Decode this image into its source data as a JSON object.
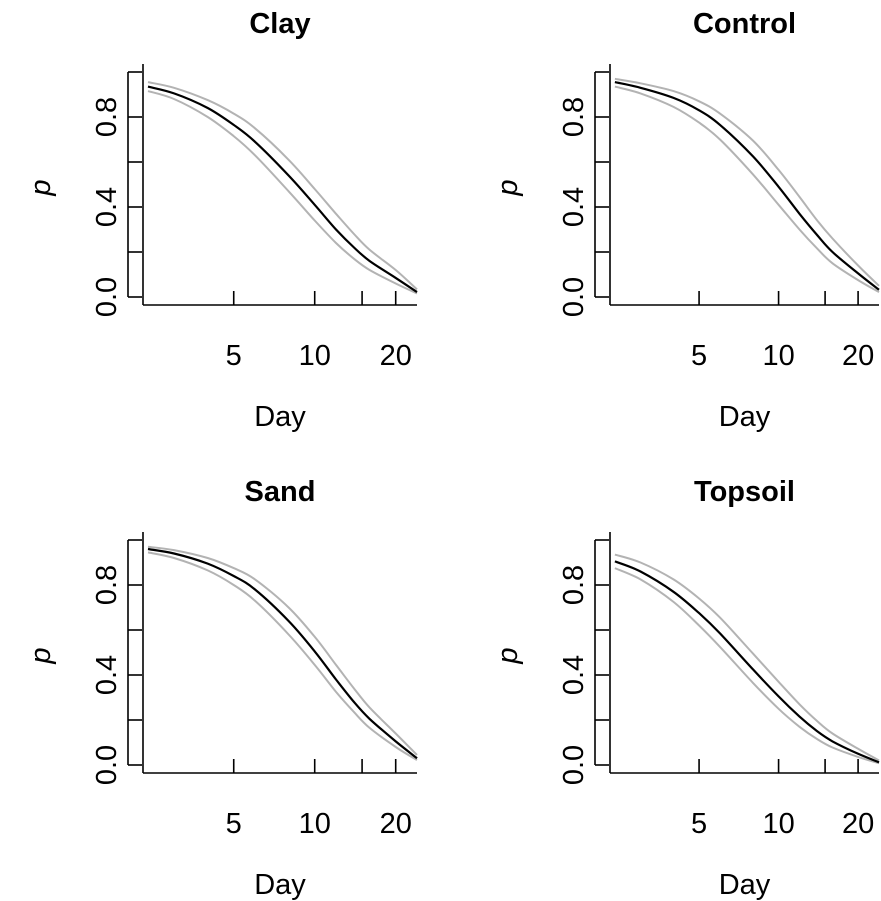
{
  "chart_data": [
    {
      "type": "line",
      "title": "Clay",
      "xlabel": "Day",
      "ylabel": "p",
      "x_scale": "log",
      "xlim": [
        2.3,
        24
      ],
      "ylim": [
        0,
        1
      ],
      "x_ticks": [
        5,
        10,
        20
      ],
      "x_tick_labels": [
        "5",
        "10",
        "20"
      ],
      "y_ticks": [
        0,
        0.2,
        0.4,
        0.6,
        0.8,
        1.0
      ],
      "y_tick_labels": [
        "0.0",
        "",
        "0.4",
        "",
        "0.8",
        ""
      ],
      "series": [
        {
          "role": "lower",
          "color": "#b3b3b3",
          "x": [
            2.4,
            3,
            4,
            5,
            6,
            8,
            10,
            12,
            14,
            16,
            20,
            24
          ],
          "y": [
            0.915,
            0.88,
            0.8,
            0.715,
            0.63,
            0.47,
            0.34,
            0.24,
            0.17,
            0.12,
            0.06,
            0.016
          ]
        },
        {
          "role": "estimate",
          "color": "#000000",
          "x": [
            2.4,
            3,
            4,
            5,
            6,
            8,
            10,
            12,
            14,
            16,
            20,
            24
          ],
          "y": [
            0.935,
            0.905,
            0.84,
            0.765,
            0.69,
            0.54,
            0.41,
            0.3,
            0.22,
            0.16,
            0.085,
            0.022
          ]
        },
        {
          "role": "upper",
          "color": "#b3b3b3",
          "x": [
            2.4,
            3,
            4,
            5,
            6,
            8,
            10,
            12,
            14,
            16,
            20,
            24
          ],
          "y": [
            0.955,
            0.93,
            0.875,
            0.815,
            0.75,
            0.61,
            0.48,
            0.37,
            0.28,
            0.21,
            0.12,
            0.034
          ]
        }
      ]
    },
    {
      "type": "line",
      "title": "Control",
      "xlabel": "Day",
      "ylabel": "p",
      "x_scale": "log",
      "xlim": [
        2.3,
        24
      ],
      "ylim": [
        0,
        1
      ],
      "x_ticks": [
        5,
        10,
        20
      ],
      "x_tick_labels": [
        "5",
        "10",
        "20"
      ],
      "y_ticks": [
        0,
        0.2,
        0.4,
        0.6,
        0.8,
        1.0
      ],
      "y_tick_labels": [
        "0.0",
        "",
        "0.4",
        "",
        "0.8",
        ""
      ],
      "series": [
        {
          "role": "lower",
          "color": "#b3b3b3",
          "x": [
            2.4,
            3,
            4,
            5,
            6,
            8,
            10,
            12,
            14,
            16,
            20,
            24
          ],
          "y": [
            0.935,
            0.905,
            0.845,
            0.775,
            0.7,
            0.545,
            0.41,
            0.3,
            0.215,
            0.15,
            0.075,
            0.022
          ]
        },
        {
          "role": "estimate",
          "color": "#000000",
          "x": [
            2.4,
            3,
            4,
            5,
            6,
            8,
            10,
            12,
            14,
            16,
            20,
            24
          ],
          "y": [
            0.955,
            0.93,
            0.885,
            0.83,
            0.765,
            0.625,
            0.49,
            0.37,
            0.275,
            0.2,
            0.105,
            0.032
          ]
        },
        {
          "role": "upper",
          "color": "#b3b3b3",
          "x": [
            2.4,
            3,
            4,
            5,
            6,
            8,
            10,
            12,
            14,
            16,
            20,
            24
          ],
          "y": [
            0.97,
            0.95,
            0.915,
            0.87,
            0.815,
            0.695,
            0.565,
            0.445,
            0.34,
            0.26,
            0.14,
            0.05
          ]
        }
      ]
    },
    {
      "type": "line",
      "title": "Sand",
      "xlabel": "Day",
      "ylabel": "p",
      "x_scale": "log",
      "xlim": [
        2.3,
        24
      ],
      "ylim": [
        0,
        1
      ],
      "x_ticks": [
        5,
        10,
        20
      ],
      "x_tick_labels": [
        "5",
        "10",
        "20"
      ],
      "y_ticks": [
        0,
        0.2,
        0.4,
        0.6,
        0.8,
        1.0
      ],
      "y_tick_labels": [
        "0.0",
        "",
        "0.4",
        "",
        "0.8",
        ""
      ],
      "series": [
        {
          "role": "lower",
          "color": "#b3b3b3",
          "x": [
            2.4,
            3,
            4,
            5,
            6,
            8,
            10,
            12,
            14,
            16,
            20,
            24
          ],
          "y": [
            0.945,
            0.92,
            0.865,
            0.8,
            0.73,
            0.58,
            0.445,
            0.325,
            0.235,
            0.165,
            0.08,
            0.022
          ]
        },
        {
          "role": "estimate",
          "color": "#000000",
          "x": [
            2.4,
            3,
            4,
            5,
            6,
            8,
            10,
            12,
            14,
            16,
            20,
            24
          ],
          "y": [
            0.96,
            0.94,
            0.895,
            0.84,
            0.78,
            0.64,
            0.505,
            0.38,
            0.28,
            0.205,
            0.105,
            0.03
          ]
        },
        {
          "role": "upper",
          "color": "#b3b3b3",
          "x": [
            2.4,
            3,
            4,
            5,
            6,
            8,
            10,
            12,
            14,
            16,
            20,
            24
          ],
          "y": [
            0.97,
            0.955,
            0.92,
            0.875,
            0.825,
            0.7,
            0.57,
            0.445,
            0.34,
            0.255,
            0.14,
            0.045
          ]
        }
      ]
    },
    {
      "type": "line",
      "title": "Topsoil",
      "xlabel": "Day",
      "ylabel": "p",
      "x_scale": "log",
      "xlim": [
        2.3,
        24
      ],
      "ylim": [
        0,
        1
      ],
      "x_ticks": [
        5,
        10,
        20
      ],
      "x_tick_labels": [
        "5",
        "10",
        "20"
      ],
      "y_ticks": [
        0,
        0.2,
        0.4,
        0.6,
        0.8,
        1.0
      ],
      "y_tick_labels": [
        "0.0",
        "",
        "0.4",
        "",
        "0.8",
        ""
      ],
      "series": [
        {
          "role": "lower",
          "color": "#b3b3b3",
          "x": [
            2.4,
            3,
            4,
            5,
            6,
            8,
            10,
            12,
            14,
            16,
            20,
            24
          ],
          "y": [
            0.875,
            0.825,
            0.725,
            0.62,
            0.525,
            0.365,
            0.25,
            0.17,
            0.115,
            0.078,
            0.036,
            0.008
          ]
        },
        {
          "role": "estimate",
          "color": "#000000",
          "x": [
            2.4,
            3,
            4,
            5,
            6,
            8,
            10,
            12,
            14,
            16,
            20,
            24
          ],
          "y": [
            0.905,
            0.86,
            0.77,
            0.675,
            0.585,
            0.425,
            0.305,
            0.215,
            0.15,
            0.105,
            0.05,
            0.012
          ]
        },
        {
          "role": "upper",
          "color": "#b3b3b3",
          "x": [
            2.4,
            3,
            4,
            5,
            6,
            8,
            10,
            12,
            14,
            16,
            20,
            24
          ],
          "y": [
            0.935,
            0.9,
            0.825,
            0.74,
            0.655,
            0.495,
            0.37,
            0.27,
            0.195,
            0.14,
            0.072,
            0.02
          ]
        }
      ]
    }
  ]
}
